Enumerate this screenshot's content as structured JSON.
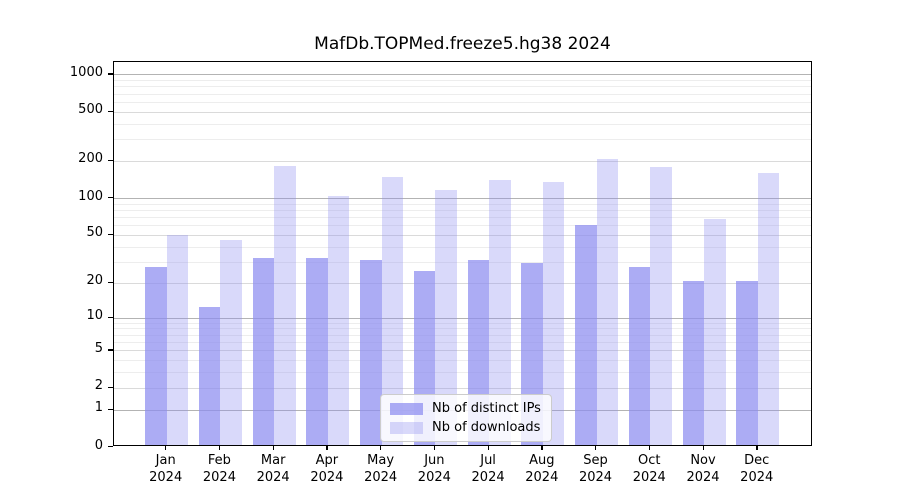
{
  "title": "MafDb.TOPMed.freeze5.hg38 2024",
  "legend": {
    "items": [
      {
        "label": "Nb of distinct IPs"
      },
      {
        "label": "Nb of downloads"
      }
    ]
  },
  "chart_data": {
    "type": "bar",
    "title": "MafDb.TOPMed.freeze5.hg38 2024",
    "categories": [
      "Jan",
      "Feb",
      "Mar",
      "Apr",
      "May",
      "Jun",
      "Jul",
      "Aug",
      "Sep",
      "Oct",
      "Nov",
      "Dec"
    ],
    "category_year": "2024",
    "series": [
      {
        "name": "Nb of distinct IPs",
        "color": "rgba(140,140,240,0.72)",
        "values": [
          26,
          12,
          31,
          31,
          30,
          24,
          30,
          28,
          58,
          26,
          20,
          20
        ]
      },
      {
        "name": "Nb of downloads",
        "color": "rgba(140,140,240,0.33)",
        "values": [
          48,
          44,
          176,
          100,
          142,
          112,
          135,
          130,
          201,
          173,
          65,
          155
        ]
      }
    ],
    "xlabel": "",
    "ylabel": "",
    "yscale": "log1p",
    "y_ticks": [
      0,
      1,
      2,
      5,
      10,
      20,
      50,
      100,
      200,
      500,
      1000
    ],
    "y_minor_ticks": [
      3,
      4,
      6,
      7,
      8,
      9,
      30,
      40,
      60,
      70,
      80,
      90,
      300,
      400,
      600,
      700,
      800,
      900
    ],
    "ylim": [
      0,
      1250
    ],
    "grid": true,
    "legend_position": "inside lower-center"
  }
}
